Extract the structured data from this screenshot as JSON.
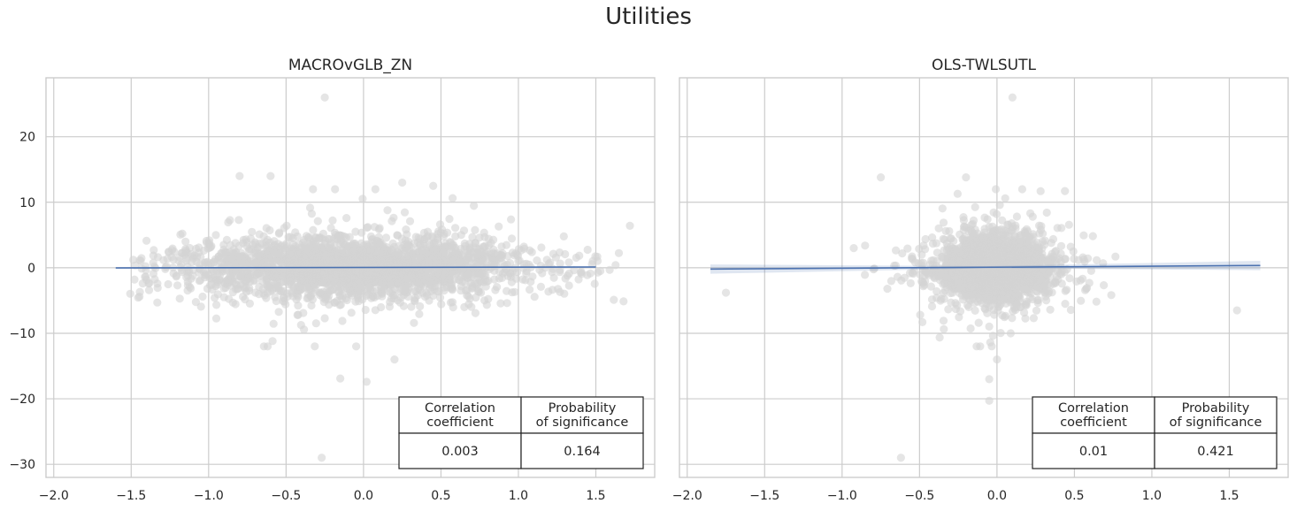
{
  "figure_title": "Utilities",
  "chart_data": [
    {
      "type": "scatter",
      "title": "MACROvGLB_ZN",
      "xlabel": "",
      "ylabel": "",
      "xlim": [
        -2.05,
        1.88
      ],
      "ylim": [
        -32,
        29
      ],
      "x_ticks": [
        -2.0,
        -1.5,
        -1.0,
        -0.5,
        0.0,
        0.5,
        1.0,
        1.5
      ],
      "x_tick_labels": [
        "−2.0",
        "−1.5",
        "−1.0",
        "−0.5",
        "0.0",
        "0.5",
        "1.0",
        "1.5"
      ],
      "y_ticks": [
        -30,
        -20,
        -10,
        0,
        10,
        20
      ],
      "y_tick_labels": [
        "−30",
        "−20",
        "−10",
        "0",
        "10",
        "20"
      ],
      "grid": true,
      "point_color": "#d3d3d3",
      "line_color": "#4c72b0",
      "regression": {
        "x_range": [
          -1.6,
          1.5
        ],
        "y_at_start": -0.02,
        "y_at_end": 0.12,
        "ci_halfwidth": 0.08
      },
      "scatter_summary": {
        "n_points": 2600,
        "x_mean": -0.05,
        "x_sd": 0.52,
        "y_sd": 2.3
      },
      "outliers": [
        {
          "x": -0.25,
          "y": 26.0
        },
        {
          "x": -0.27,
          "y": -29.0
        },
        {
          "x": -0.15,
          "y": -16.9
        },
        {
          "x": 0.02,
          "y": -17.4
        },
        {
          "x": 0.2,
          "y": -14.0
        },
        {
          "x": -0.8,
          "y": 14.0
        },
        {
          "x": -0.6,
          "y": 14.0
        },
        {
          "x": 0.25,
          "y": 13.0
        },
        {
          "x": 0.45,
          "y": 12.5
        }
      ],
      "table": {
        "headers": [
          "Correlation\ncoefficient",
          "Probability\nof significance"
        ],
        "values": [
          "0.003",
          "0.164"
        ]
      }
    },
    {
      "type": "scatter",
      "title": "OLS-TWLSUTL",
      "xlabel": "",
      "ylabel": "",
      "xlim": [
        -2.05,
        1.88
      ],
      "ylim": [
        -32,
        29
      ],
      "x_ticks": [
        -2.0,
        -1.5,
        -1.0,
        -0.5,
        0.0,
        0.5,
        1.0,
        1.5
      ],
      "x_tick_labels": [
        "−2.0",
        "−1.5",
        "−1.0",
        "−0.5",
        "0.0",
        "0.5",
        "1.0",
        "1.5"
      ],
      "y_ticks": [
        -30,
        -20,
        -10,
        0,
        10,
        20
      ],
      "y_tick_labels": [
        "−30",
        "−20",
        "−10",
        "0",
        "10",
        "20"
      ],
      "grid": true,
      "point_color": "#d3d3d3",
      "line_color": "#4c72b0",
      "regression": {
        "x_range": [
          -1.85,
          1.7
        ],
        "y_at_start": -0.2,
        "y_at_end": 0.35,
        "ci_halfwidth": 0.55
      },
      "scatter_summary": {
        "n_points": 2200,
        "x_mean": 0.0,
        "x_sd": 0.17,
        "y_sd": 2.5
      },
      "outliers": [
        {
          "x": 0.1,
          "y": 26.0
        },
        {
          "x": -0.62,
          "y": -29.0
        },
        {
          "x": -0.2,
          "y": 13.8
        },
        {
          "x": -0.75,
          "y": 13.8
        },
        {
          "x": 0.0,
          "y": -14.0
        },
        {
          "x": -0.05,
          "y": -17.0
        },
        {
          "x": -0.05,
          "y": -20.3
        },
        {
          "x": 1.55,
          "y": -6.5
        },
        {
          "x": -1.75,
          "y": -3.8
        }
      ],
      "table": {
        "headers": [
          "Correlation\ncoefficient",
          "Probability\nof significance"
        ],
        "values": [
          "0.01",
          "0.421"
        ]
      }
    }
  ]
}
